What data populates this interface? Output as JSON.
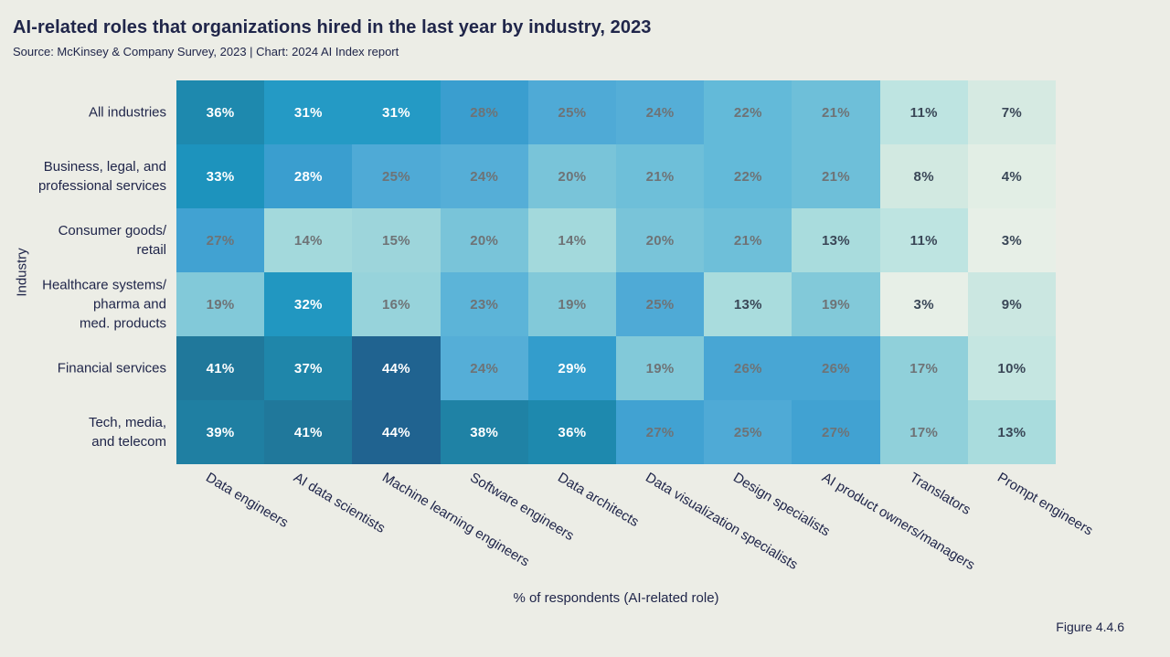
{
  "chart_data": {
    "type": "heatmap",
    "title": "AI-related roles that organizations hired in the last year by industry, 2023",
    "subtitle": "Source: McKinsey & Company Survey, 2023 | Chart: 2024 AI Index report",
    "figure_label": "Figure 4.4.6",
    "xlabel": "% of respondents (AI-related role)",
    "ylabel": "Industry",
    "columns": [
      "Data engineers",
      "AI data scientists",
      "Machine learning engineers",
      "Software engineers",
      "Data architects",
      "Data visualization specialists",
      "Design specialists",
      "AI product owners/managers",
      "Translators",
      "Prompt engineers"
    ],
    "rows": [
      "All industries",
      "Business, legal, and\nprofessional services",
      "Consumer goods/\nretail",
      "Healthcare systems/\npharma and\nmed. products",
      "Financial services",
      "Tech, media,\nand telecom"
    ],
    "values": [
      [
        36,
        31,
        31,
        28,
        25,
        24,
        22,
        21,
        11,
        7
      ],
      [
        33,
        28,
        25,
        24,
        20,
        21,
        22,
        21,
        8,
        4
      ],
      [
        27,
        14,
        15,
        20,
        14,
        20,
        21,
        13,
        11,
        3
      ],
      [
        19,
        32,
        16,
        23,
        19,
        25,
        13,
        19,
        3,
        9
      ],
      [
        41,
        37,
        44,
        24,
        29,
        19,
        26,
        26,
        17,
        10
      ],
      [
        39,
        41,
        44,
        38,
        36,
        27,
        25,
        27,
        17,
        13
      ]
    ],
    "value_suffix": "%",
    "value_range": [
      3,
      44
    ],
    "colors": {
      "background": "#ecede6",
      "text": "#20264a",
      "cell_label_white": "#ffffff",
      "cell_label_mid": "#6e7376",
      "cell_label_dark": "#3a4757"
    },
    "color_scale_stops": [
      [
        3,
        "#e7efe7"
      ],
      [
        5,
        "#ddece3"
      ],
      [
        8,
        "#d2e9e1"
      ],
      [
        11,
        "#bee4e1"
      ],
      [
        13,
        "#a9dcdd"
      ],
      [
        15,
        "#9dd5db"
      ],
      [
        17,
        "#90d0da"
      ],
      [
        19,
        "#82c9d9"
      ],
      [
        20,
        "#79c4d9"
      ],
      [
        22,
        "#63bad9"
      ],
      [
        24,
        "#55aed7"
      ],
      [
        26,
        "#48a6d4"
      ],
      [
        28,
        "#3a9ecf"
      ],
      [
        30,
        "#2b9bc8"
      ],
      [
        31,
        "#249ac5"
      ],
      [
        33,
        "#1d93bd"
      ],
      [
        36,
        "#1e89ae"
      ],
      [
        38,
        "#1f82a5"
      ],
      [
        41,
        "#20789b"
      ],
      [
        44,
        "#206390"
      ]
    ],
    "label_rules": {
      "white_min": 28,
      "dark_max": 13,
      "mid_overrides": [
        [
          0,
          3
        ]
      ]
    },
    "legend": "none",
    "grid": "off"
  }
}
